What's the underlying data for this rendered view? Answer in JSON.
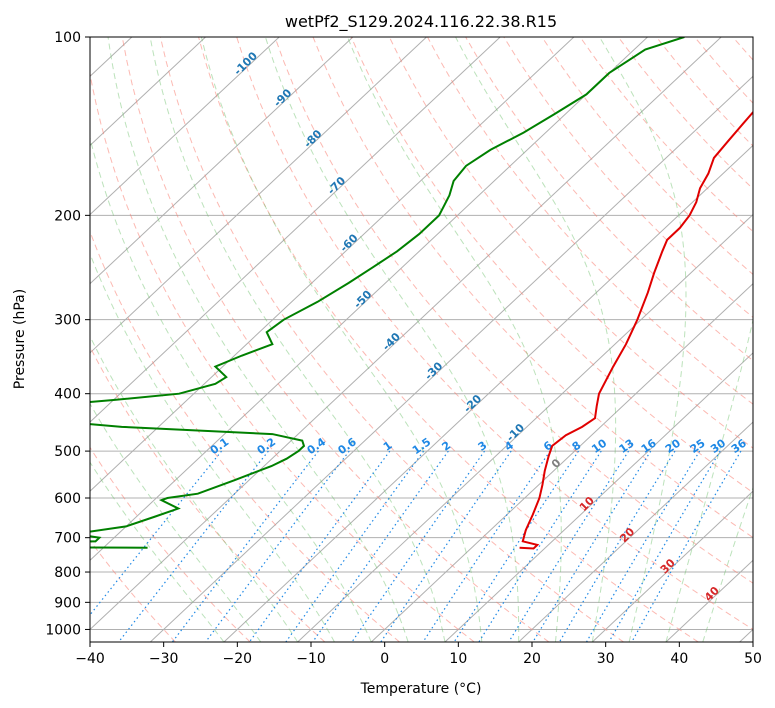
{
  "chart_data": {
    "type": "skew-t",
    "title": "wetPf2_S129.2024.116.22.38.R15",
    "xlabel": "Temperature (°C)",
    "ylabel": "Pressure (hPa)",
    "xlim": [
      -40,
      50
    ],
    "ylim": [
      1050,
      100
    ],
    "yscale": "log",
    "grid": true,
    "x_ticks": [
      -40,
      -30,
      -20,
      -10,
      0,
      10,
      20,
      30,
      40,
      50
    ],
    "x_tick_labels": [
      "−40",
      "−30",
      "−20",
      "−10",
      "0",
      "10",
      "20",
      "30",
      "40",
      "50"
    ],
    "y_ticks": [
      100,
      200,
      300,
      400,
      500,
      600,
      700,
      800,
      900,
      1000
    ],
    "y_tick_labels": [
      "100",
      "200",
      "300",
      "400",
      "500",
      "600",
      "700",
      "800",
      "900",
      "1000"
    ],
    "series": [
      {
        "type": "temperature",
        "color": "#e00000",
        "points": [
          [
            100,
            -26.5
          ],
          [
            110,
            -26.5
          ],
          [
            120,
            -26.0
          ],
          [
            130,
            -25.0
          ],
          [
            140,
            -24.5
          ],
          [
            150,
            -24.0
          ],
          [
            160,
            -23.5
          ],
          [
            170,
            -22.0
          ],
          [
            180,
            -21.0
          ],
          [
            190,
            -19.5
          ],
          [
            200,
            -18.5
          ],
          [
            210,
            -18.0
          ],
          [
            220,
            -18.0
          ],
          [
            230,
            -17.0
          ],
          [
            250,
            -15.0
          ],
          [
            270,
            -13.0
          ],
          [
            300,
            -10.5
          ],
          [
            330,
            -8.5
          ],
          [
            360,
            -7.0
          ],
          [
            400,
            -5.0
          ],
          [
            420,
            -3.5
          ],
          [
            440,
            -2.0
          ],
          [
            455,
            -2.5
          ],
          [
            470,
            -3.5
          ],
          [
            490,
            -3.8
          ],
          [
            510,
            -2.8
          ],
          [
            540,
            -1.2
          ],
          [
            570,
            0.5
          ],
          [
            600,
            2.0
          ],
          [
            640,
            3.5
          ],
          [
            680,
            4.8
          ],
          [
            710,
            6.0
          ],
          [
            720,
            8.5
          ],
          [
            730,
            8.5
          ],
          [
            728,
            6.5
          ]
        ]
      },
      {
        "type": "dewpoint",
        "color": "#008000",
        "points": [
          [
            100,
            -45
          ],
          [
            105,
            -48.5
          ],
          [
            115,
            -50
          ],
          [
            125,
            -50
          ],
          [
            135,
            -51.5
          ],
          [
            145,
            -53
          ],
          [
            155,
            -55
          ],
          [
            165,
            -56
          ],
          [
            175,
            -55.5
          ],
          [
            185,
            -54
          ],
          [
            200,
            -52.5
          ],
          [
            215,
            -52.5
          ],
          [
            230,
            -53
          ],
          [
            245,
            -54
          ],
          [
            260,
            -55
          ],
          [
            280,
            -56.5
          ],
          [
            300,
            -58.5
          ],
          [
            315,
            -59
          ],
          [
            330,
            -56.5
          ],
          [
            345,
            -59
          ],
          [
            360,
            -61
          ],
          [
            375,
            -58
          ],
          [
            385,
            -58.5
          ],
          [
            400,
            -62
          ],
          [
            410,
            -70
          ],
          [
            420,
            -79
          ],
          [
            440,
            -80
          ],
          [
            455,
            -65
          ],
          [
            468,
            -43.5
          ],
          [
            480,
            -38.5
          ],
          [
            490,
            -37.5
          ],
          [
            500,
            -37.5
          ],
          [
            515,
            -38
          ],
          [
            530,
            -39
          ],
          [
            560,
            -42
          ],
          [
            590,
            -45
          ],
          [
            600,
            -48.5
          ],
          [
            605,
            -49
          ],
          [
            625,
            -45.5
          ],
          [
            645,
            -47.5
          ],
          [
            670,
            -50
          ],
          [
            690,
            -56
          ],
          [
            700,
            -52
          ],
          [
            710,
            -52
          ],
          [
            712,
            -80
          ],
          [
            720,
            -80
          ],
          [
            724,
            -80
          ],
          [
            728,
            -44
          ]
        ]
      }
    ],
    "isotherm_labels": [
      "-100",
      "-90",
      "-80",
      "-70",
      "-60",
      "-50",
      "-40",
      "-30",
      "-20",
      "-10",
      "0",
      "10",
      "20",
      "30",
      "40"
    ],
    "mixing_ratio_labels": [
      "0.1",
      "0.2",
      "0.4",
      "0.6",
      "1",
      "1.5",
      "2",
      "3",
      "4",
      "6",
      "8",
      "10",
      "13",
      "16",
      "20",
      "25",
      "30",
      "36"
    ],
    "mixing_ratio_values": [
      0.1,
      0.2,
      0.4,
      0.6,
      1,
      1.5,
      2,
      3,
      4,
      6,
      8,
      10,
      13,
      16,
      20,
      25,
      30,
      36
    ],
    "colors": {
      "isotherm_label": "#1f77b4",
      "isotherm_label_warm": "#d62728",
      "isotherm_label_zero": "#7f7f7f",
      "mixing_ratio": "#1e88e5",
      "dry_adiabat": "#fa8072",
      "moist_adiabat": "#6abf69",
      "grid": "#b0b0b0",
      "special_adiabat": "#c8a878"
    }
  }
}
